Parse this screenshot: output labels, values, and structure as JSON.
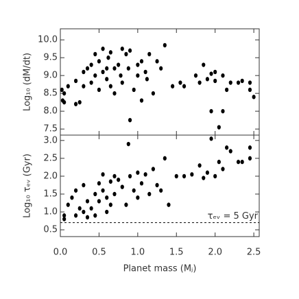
{
  "chart_data": [
    {
      "type": "scatter",
      "ylabel": "Log₁₀ (dM/dt)",
      "color": "#000000",
      "xlim": [
        0,
        2.57
      ],
      "ylim": [
        7.33,
        10.31
      ],
      "yticks": [
        {
          "value": 7.5,
          "label": "7.5"
        },
        {
          "value": 8,
          "label": "8.0"
        },
        {
          "value": 8.5,
          "label": "8.5"
        },
        {
          "value": 9,
          "label": "9.0"
        },
        {
          "value": 9.5,
          "label": "9.5"
        },
        {
          "value": 10,
          "label": "10.0"
        }
      ],
      "x": [
        0.02,
        0.03,
        0.05,
        0.05,
        0.1,
        0.2,
        0.25,
        0.2,
        0.3,
        0.3,
        0.35,
        0.4,
        0.4,
        0.45,
        0.45,
        0.5,
        0.5,
        0.55,
        0.55,
        0.6,
        0.6,
        0.62,
        0.65,
        0.65,
        0.7,
        0.7,
        0.75,
        0.78,
        0.8,
        0.8,
        0.85,
        0.88,
        0.9,
        0.9,
        0.95,
        1.0,
        1.0,
        1.05,
        1.05,
        1.1,
        1.12,
        1.15,
        1.2,
        1.25,
        1.3,
        1.35,
        1.45,
        1.55,
        1.6,
        1.75,
        1.8,
        1.85,
        1.9,
        1.95,
        1.95,
        2.0,
        2.0,
        2.05,
        2.1,
        2.15,
        2.2,
        2.3,
        2.35,
        2.45,
        2.45,
        2.5,
        2.1
      ],
      "values": [
        8.6,
        8.3,
        8.5,
        8.25,
        8.7,
        8.2,
        8.25,
        8.85,
        9.1,
        8.7,
        9.2,
        9.3,
        8.8,
        9.0,
        9.6,
        9.4,
        8.6,
        9.1,
        9.75,
        9.2,
        8.9,
        9.5,
        9.65,
        8.7,
        9.2,
        8.5,
        9.3,
        9.0,
        9.75,
        8.8,
        9.6,
        9.2,
        7.75,
        9.7,
        8.6,
        9.3,
        9.0,
        9.4,
        8.3,
        9.1,
        8.9,
        9.6,
        8.5,
        9.4,
        9.2,
        9.85,
        8.7,
        8.8,
        8.7,
        9.0,
        8.8,
        9.3,
        8.9,
        9.05,
        8.0,
        8.85,
        9.1,
        7.55,
        9.0,
        8.6,
        8.8,
        8.8,
        8.85,
        8.6,
        8.8,
        8.4,
        8.0
      ]
    },
    {
      "type": "scatter",
      "ylabel": "Log₁₀ τₑᵥ (Gyr)",
      "xlabel": "Planet mass (Mⱼ)",
      "color": "#000000",
      "xlim": [
        0,
        2.57
      ],
      "ylim": [
        0.31,
        3.15
      ],
      "xticks": [
        {
          "value": 0,
          "label": "0.0"
        },
        0.5,
        {
          "value": 1,
          "label": "1.0"
        },
        1.5,
        {
          "value": 2,
          "label": "2.0"
        },
        2.5
      ],
      "yticks": [
        0.5,
        {
          "value": 1,
          "label": "1.0"
        },
        1.5,
        {
          "value": 2,
          "label": "2.0"
        },
        2.5,
        {
          "value": 3,
          "label": "3.0"
        }
      ],
      "reference_line": 0.7,
      "annotation": "τₑᵥ = 5 Gyr",
      "x": [
        0.05,
        0.05,
        0.1,
        0.15,
        0.2,
        0.2,
        0.25,
        0.3,
        0.3,
        0.35,
        0.35,
        0.4,
        0.45,
        0.45,
        0.5,
        0.5,
        0.55,
        0.55,
        0.6,
        0.6,
        0.65,
        0.65,
        0.7,
        0.7,
        0.75,
        0.8,
        0.85,
        0.88,
        0.9,
        0.95,
        1.0,
        1.0,
        1.05,
        1.1,
        1.15,
        1.2,
        1.25,
        1.3,
        1.35,
        1.4,
        1.5,
        1.6,
        1.7,
        1.8,
        1.85,
        1.9,
        1.95,
        2.0,
        2.05,
        2.1,
        2.15,
        2.2,
        2.3,
        2.35,
        2.45,
        2.45
      ],
      "values": [
        0.8,
        0.9,
        1.2,
        1.4,
        1.6,
        0.9,
        1.1,
        1.0,
        1.75,
        1.3,
        0.85,
        1.1,
        0.9,
        1.5,
        1.8,
        1.3,
        1.6,
        2.05,
        1.4,
        1.0,
        1.85,
        1.2,
        2.0,
        1.5,
        1.9,
        1.7,
        1.2,
        2.9,
        2.0,
        1.6,
        2.1,
        1.4,
        1.8,
        2.05,
        1.5,
        2.2,
        1.75,
        1.6,
        2.5,
        1.2,
        2.0,
        2.0,
        2.05,
        2.3,
        1.95,
        2.1,
        3.05,
        2.0,
        2.4,
        2.2,
        2.8,
        2.7,
        2.4,
        2.4,
        2.8,
        2.5
      ]
    }
  ]
}
